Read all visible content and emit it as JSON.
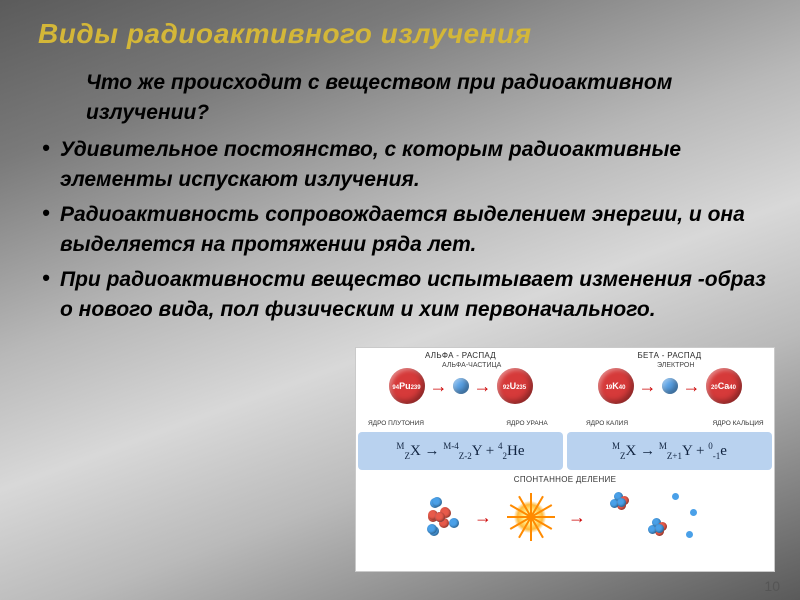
{
  "title": {
    "text": "Виды радиоактивного излучения",
    "color": "#d4b738",
    "fontsize": 28
  },
  "intro": {
    "text": "Что же происходит с веществом при радиоактивном    излучении?",
    "fontsize": 21,
    "color": "#000000"
  },
  "bullets": {
    "fontsize": 21,
    "color": "#000000",
    "items": [
      "Удивительное постоянство, с которым радиоактивные элементы испускают излучения.",
      "Радиоактивность сопровождается выделением энергии, и она выделяется на протяжении ряда лет.",
      "При радиоактивности вещество испытывает изменения -образ                                                     о нового вида, пол                                                     физическим и хим                                                     первоначального."
    ]
  },
  "diagram": {
    "background": "#ffffff",
    "alpha": {
      "title": "АЛЬФА - РАСПАД",
      "sub": "АЛЬФА-ЧАСТИЦА",
      "parent": {
        "pre": "94",
        "el": "Pu",
        "mass": "239",
        "label": "ЯДРО ПЛУТОНИЯ",
        "color": "#d63a3a"
      },
      "particle": {
        "color": "#5aa2e6"
      },
      "daughter": {
        "pre": "92",
        "el": "U",
        "mass": "235",
        "label": "ЯДРО УРАНА",
        "color": "#d63a3a"
      },
      "formula": "ᴹ⁄z X → ᴹ⁻⁴⁄z-2 Y + ⁴⁄2 He",
      "formula_bg": "#b9d2ef",
      "formula_color": "#10233f"
    },
    "beta": {
      "title": "БЕТА - РАСПАД",
      "sub": "ЭЛЕКТРОН",
      "parent": {
        "pre": "19",
        "el": "K",
        "mass": "40",
        "label": "ЯДРО КАЛИЯ",
        "color": "#d63a3a"
      },
      "particle": {
        "color": "#5aa2e6"
      },
      "daughter": {
        "pre": "20",
        "el": "Ca",
        "mass": "40",
        "label": "ЯДРО КАЛЬЦИЯ",
        "color": "#d63a3a"
      },
      "formula": "ᴹ⁄z X → ᴹ⁄z+1 Y + ⁰⁄-1 e",
      "formula_bg": "#b9d2ef",
      "formula_color": "#10233f"
    },
    "fission": {
      "title": "СПОНТАННОЕ ДЕЛЕНИЕ",
      "nucleon_colors": {
        "proton": "#e85a4a",
        "neutron": "#4aa0e8"
      },
      "burst_color": "#ffae2e",
      "arrow_color": "#cc0000"
    }
  },
  "pagenum": "10"
}
